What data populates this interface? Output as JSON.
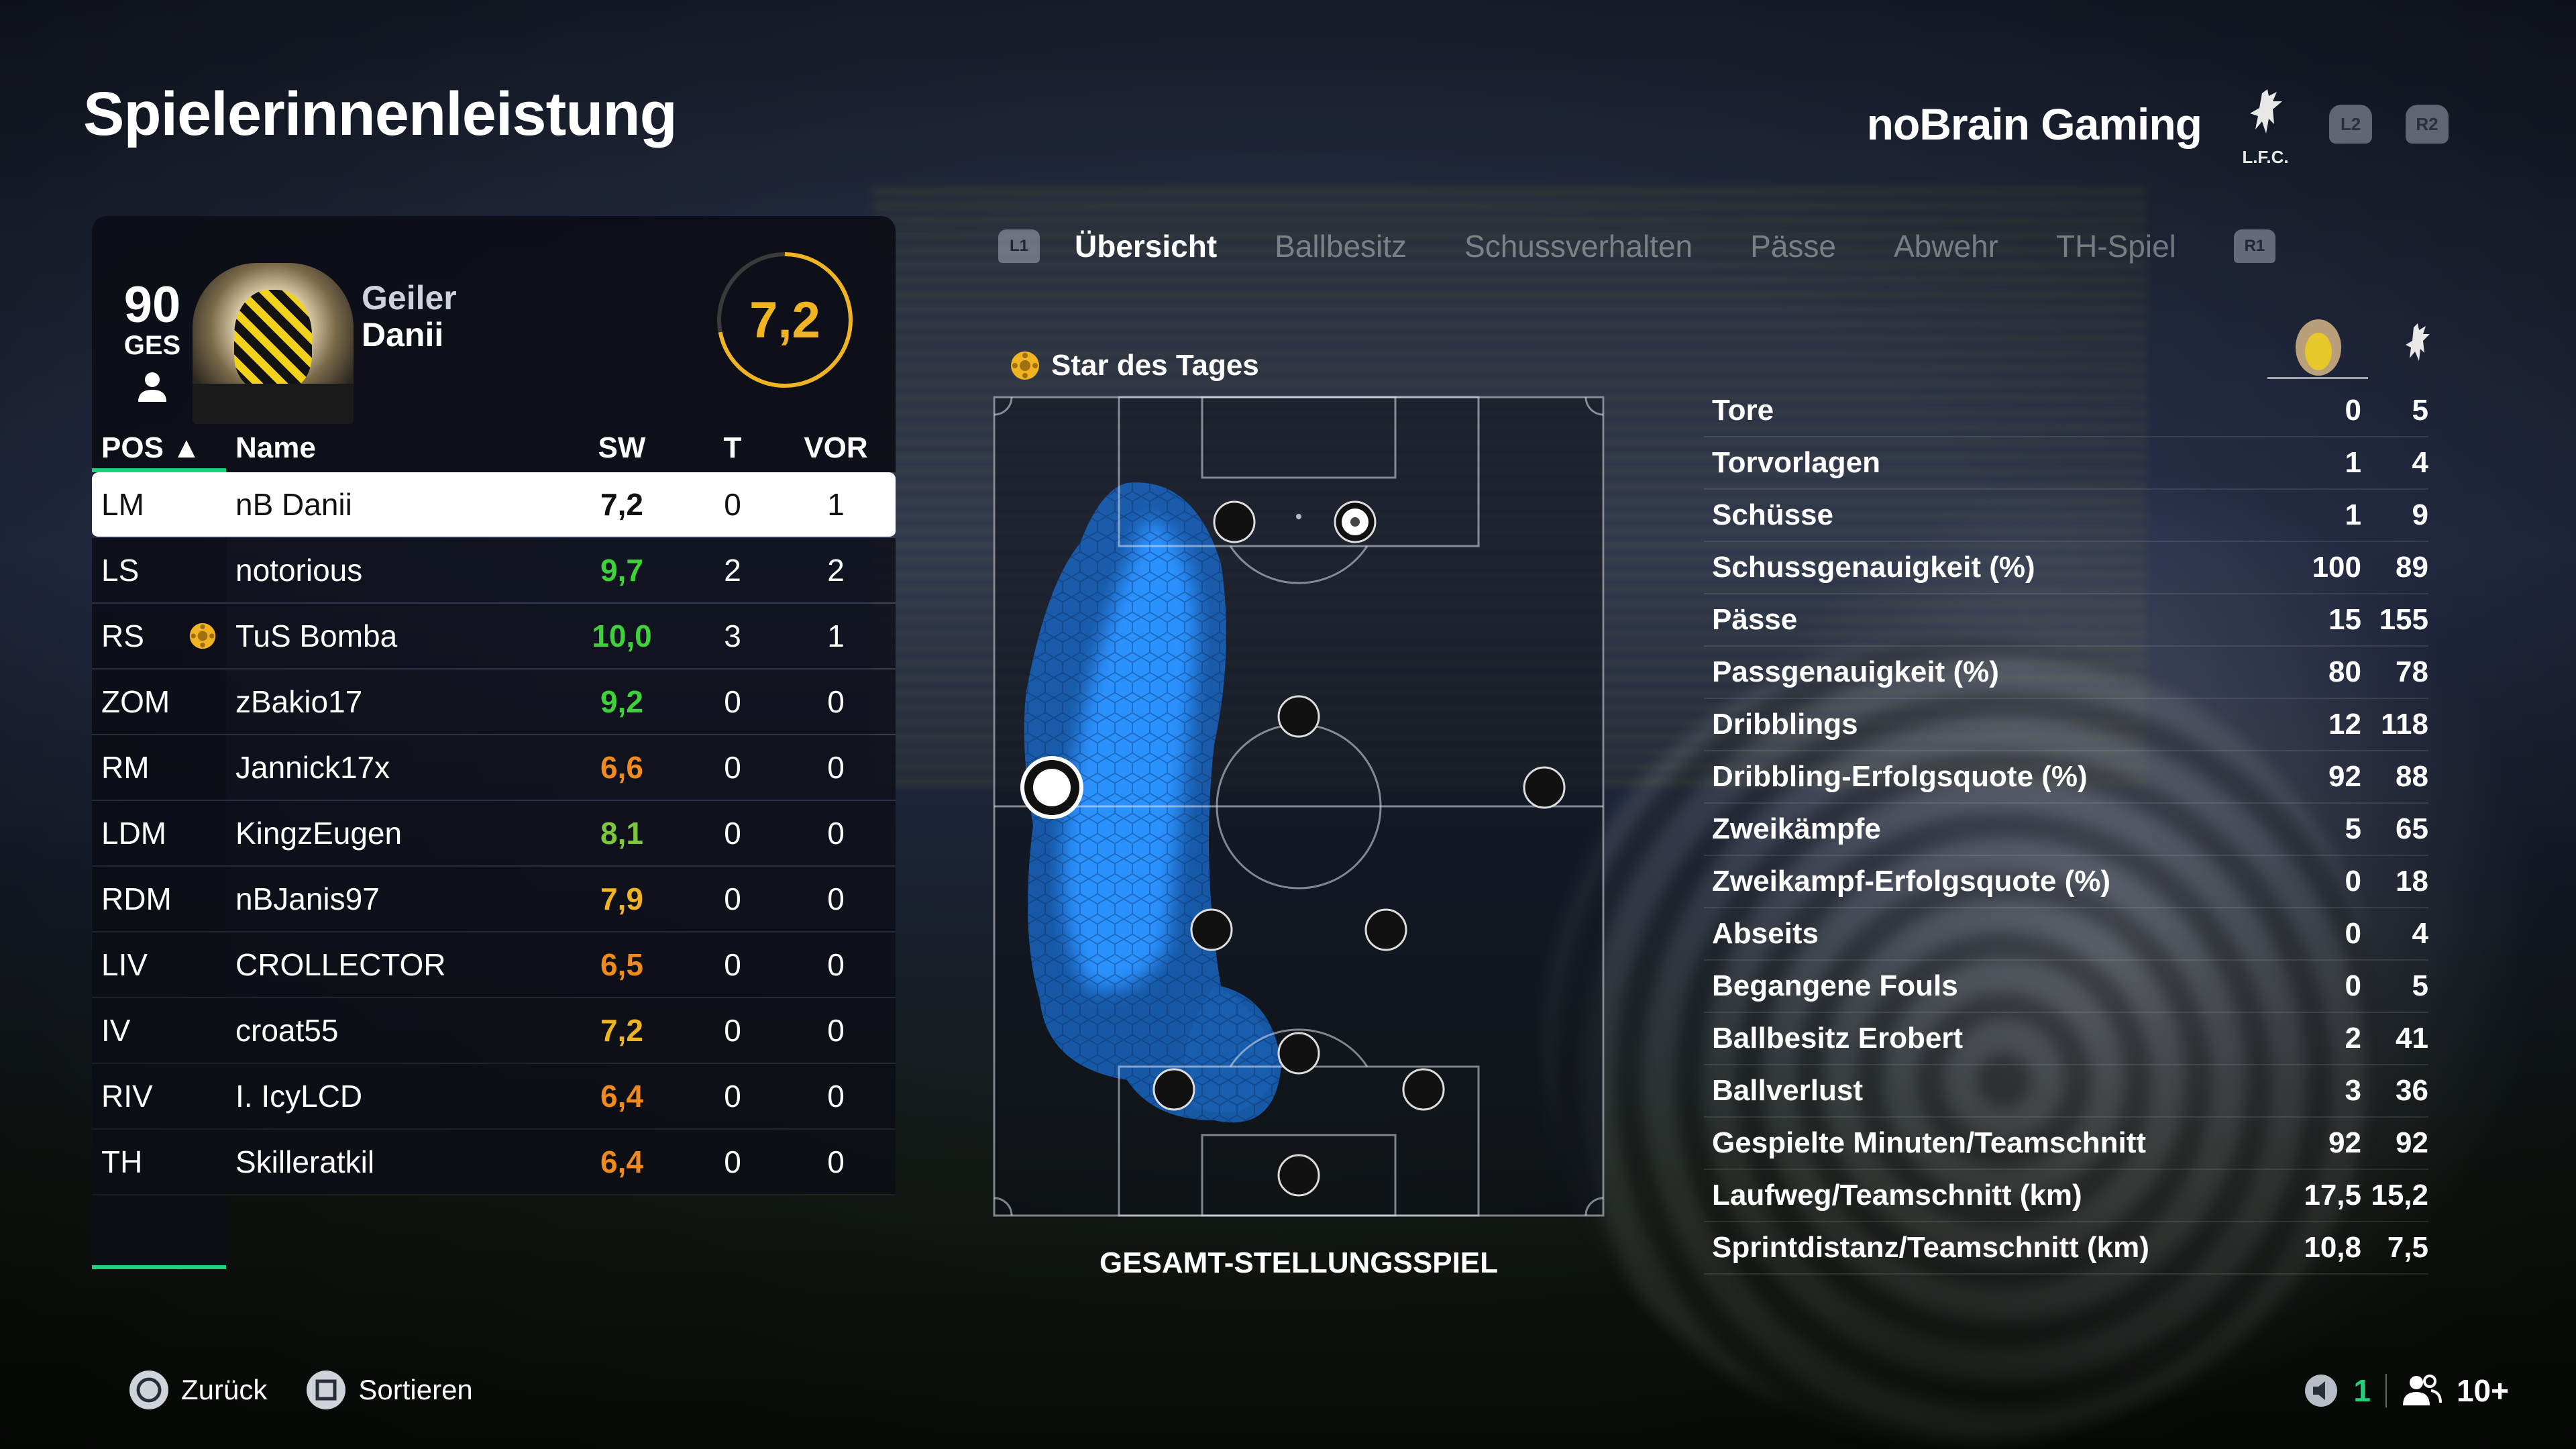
{
  "title": "Spielerinnenleistung",
  "team_name": "noBrain Gaming",
  "club_crest_text": "L.F.C.",
  "triggers": [
    "L2",
    "R2"
  ],
  "player": {
    "overall": "90",
    "overall_label": "GES",
    "first_name": "Geiler",
    "last_name": "Danii",
    "rating": "7,2",
    "rating_fraction": 0.72
  },
  "table": {
    "headers": {
      "pos": "POS ▲",
      "name": "Name",
      "sw": "SW",
      "t": "T",
      "vor": "VOR"
    },
    "rows": [
      {
        "pos": "LM",
        "name": "nB Danii",
        "sw": "7,2",
        "t": "0",
        "vor": "1",
        "sw_color": "#111111",
        "star": false,
        "selected": true
      },
      {
        "pos": "LS",
        "name": "notorious",
        "sw": "9,7",
        "t": "2",
        "vor": "2",
        "sw_color": "#3fd13a",
        "star": false
      },
      {
        "pos": "RS",
        "name": "TuS Bomba",
        "sw": "10,0",
        "t": "3",
        "vor": "1",
        "sw_color": "#3fd13a",
        "star": true
      },
      {
        "pos": "ZOM",
        "name": "zBakio17",
        "sw": "9,2",
        "t": "0",
        "vor": "0",
        "sw_color": "#3fd13a",
        "star": false
      },
      {
        "pos": "RM",
        "name": "Jannick17x",
        "sw": "6,6",
        "t": "0",
        "vor": "0",
        "sw_color": "#f08a1c",
        "star": false
      },
      {
        "pos": "LDM",
        "name": "KingzEugen",
        "sw": "8,1",
        "t": "0",
        "vor": "0",
        "sw_color": "#7cc73c",
        "star": false
      },
      {
        "pos": "RDM",
        "name": "nBJanis97",
        "sw": "7,9",
        "t": "0",
        "vor": "0",
        "sw_color": "#f0b321",
        "star": false
      },
      {
        "pos": "LIV",
        "name": "CROLLECTOR",
        "sw": "6,5",
        "t": "0",
        "vor": "0",
        "sw_color": "#f08a1c",
        "star": false
      },
      {
        "pos": "IV",
        "name": "croat55",
        "sw": "7,2",
        "t": "0",
        "vor": "0",
        "sw_color": "#f0b321",
        "star": false
      },
      {
        "pos": "RIV",
        "name": "I. IcyLCD",
        "sw": "6,4",
        "t": "0",
        "vor": "0",
        "sw_color": "#f08a1c",
        "star": false
      },
      {
        "pos": "TH",
        "name": "Skilleratkil",
        "sw": "6,4",
        "t": "0",
        "vor": "0",
        "sw_color": "#f08a1c",
        "star": false
      }
    ]
  },
  "tabs": {
    "left_bumper": "L1",
    "right_bumper": "R1",
    "items": [
      "Übersicht",
      "Ballbesitz",
      "Schussverhalten",
      "Pässe",
      "Abwehr",
      "TH-Spiel"
    ],
    "active": 0
  },
  "star_of_day": "Star des Tages",
  "pitch_caption": "GESAMT-STELLUNGSSPIEL",
  "stats": [
    {
      "label": "Tore",
      "player": "0",
      "team": "5"
    },
    {
      "label": "Torvorlagen",
      "player": "1",
      "team": "4"
    },
    {
      "label": "Schüsse",
      "player": "1",
      "team": "9"
    },
    {
      "label": "Schussgenauigkeit (%)",
      "player": "100",
      "team": "89"
    },
    {
      "label": "Pässe",
      "player": "15",
      "team": "155"
    },
    {
      "label": "Passgenauigkeit (%)",
      "player": "80",
      "team": "78"
    },
    {
      "label": "Dribblings",
      "player": "12",
      "team": "118"
    },
    {
      "label": "Dribbling-Erfolgsquote (%)",
      "player": "92",
      "team": "88"
    },
    {
      "label": "Zweikämpfe",
      "player": "5",
      "team": "65"
    },
    {
      "label": "Zweikampf-Erfolgsquote (%)",
      "player": "0",
      "team": "18"
    },
    {
      "label": "Abseits",
      "player": "0",
      "team": "4"
    },
    {
      "label": "Begangene Fouls",
      "player": "0",
      "team": "5"
    },
    {
      "label": "Ballbesitz Erobert",
      "player": "2",
      "team": "41"
    },
    {
      "label": "Ballverlust",
      "player": "3",
      "team": "36"
    },
    {
      "label": "Gespielte Minuten/Teamschnitt",
      "player": "92",
      "team": "92"
    },
    {
      "label": "Laufweg/Teamschnitt (km)",
      "player": "17,5",
      "team": "15,2"
    },
    {
      "label": "Sprintdistanz/Teamschnitt (km)",
      "player": "10,8",
      "team": "7,5"
    }
  ],
  "footer": {
    "back": "Zurück",
    "sort": "Sortieren",
    "count_green": "1",
    "count_players": "10+"
  }
}
